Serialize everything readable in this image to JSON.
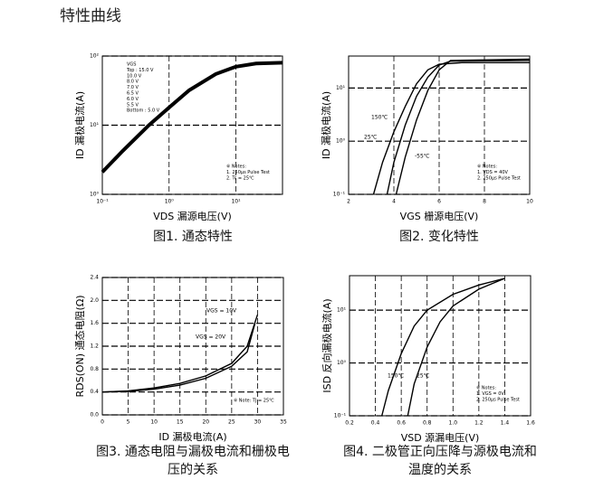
{
  "page": {
    "title": "特性曲线"
  },
  "chart_data": [
    {
      "type": "line",
      "caption": "图1. 通态特性",
      "x_label": "VDS 漏源电压(V)",
      "y_label": "ID 漏极电流(A)",
      "xlog": true,
      "ylog": true,
      "xlim": [
        0.1,
        50
      ],
      "ylim": [
        1,
        100
      ],
      "xticks": [
        {
          "value": 0.1,
          "label": "10⁻¹"
        },
        {
          "value": 1,
          "label": "10⁰"
        },
        {
          "value": 10,
          "label": "10¹"
        }
      ],
      "yticks": [
        {
          "value": 1,
          "label": "10⁰"
        },
        {
          "value": 10,
          "label": "10¹"
        },
        {
          "value": 100,
          "label": "10²"
        }
      ],
      "grid": true,
      "series": [
        {
          "color": "#000",
          "x": [
            0.1,
            0.2,
            0.5,
            1,
            2,
            5,
            10,
            20,
            50
          ],
          "values": [
            2.1,
            4.2,
            10,
            18,
            32,
            55,
            70,
            78,
            80
          ]
        }
      ],
      "annotations": [
        [
          "VGS",
          "Top :  15.0 V",
          "10.0 V",
          "8.0 V",
          "7.0 V",
          "6.5 V",
          "6.0 V",
          "5.5 V",
          "Bottom :  5.0 V"
        ],
        [
          "※ Notes:",
          "1. 250μs Pulse Test",
          "2. Tc = 25℃"
        ]
      ]
    },
    {
      "type": "line",
      "caption": "图2. 变化特性",
      "x_label": "VGS 栅源电压(V)",
      "y_label": "ID 漏极电流(A)",
      "ylog": true,
      "xlim": [
        2,
        10
      ],
      "ylim": [
        0.1,
        40
      ],
      "xticks": [
        2,
        4,
        6,
        8,
        10
      ],
      "yticks": [
        {
          "value": 0.1,
          "label": "10⁻¹"
        },
        {
          "value": 1,
          "label": "10⁰"
        },
        {
          "value": 10,
          "label": "10¹"
        }
      ],
      "grid": true,
      "series": [
        {
          "name": "150℃",
          "color": "#000",
          "x": [
            3.1,
            3.5,
            4,
            4.5,
            5,
            5.5,
            6,
            7,
            10
          ],
          "values": [
            0.1,
            0.4,
            1.5,
            4.5,
            12,
            22,
            28,
            30,
            30
          ]
        },
        {
          "name": "25℃",
          "color": "#000",
          "x": [
            3.7,
            4,
            4.5,
            5,
            5.5,
            6,
            6.5,
            10
          ],
          "values": [
            0.1,
            0.4,
            2,
            7,
            16,
            27,
            32,
            33
          ]
        },
        {
          "name": "-55℃",
          "color": "#000",
          "x": [
            4.1,
            4.5,
            5,
            5.5,
            6,
            6.5,
            10
          ],
          "values": [
            0.1,
            0.5,
            2.5,
            9,
            22,
            33,
            35
          ]
        }
      ],
      "annotations": [
        [
          "※ Notes:",
          "1. VDS = 40V",
          "2. 250μs Pulse Test"
        ]
      ]
    },
    {
      "type": "line",
      "caption": "图3. 通态电阻与漏极电流和栅极电压的关系",
      "x_label": "ID 漏极电流(A)",
      "y_label": "RDS(ON) 通态电阻(Ω)",
      "xlim": [
        0,
        35
      ],
      "ylim": [
        0,
        2.4
      ],
      "xticks": [
        0,
        5,
        10,
        15,
        20,
        25,
        30,
        35
      ],
      "yticks": [
        {
          "value": 0,
          "label": "0.0"
        },
        0.4,
        0.8,
        1.2,
        1.6,
        {
          "value": 2,
          "label": "2.0"
        },
        2.4
      ],
      "grid": true,
      "series": [
        {
          "name": "VGS = 10V",
          "color": "#000",
          "x": [
            0,
            5,
            10,
            15,
            20,
            25,
            28,
            30
          ],
          "values": [
            0.4,
            0.42,
            0.47,
            0.55,
            0.68,
            0.9,
            1.2,
            1.75
          ]
        },
        {
          "name": "VGS = 20V",
          "color": "#000",
          "x": [
            0,
            5,
            10,
            15,
            20,
            25,
            28,
            29.5
          ],
          "values": [
            0.4,
            0.41,
            0.45,
            0.52,
            0.64,
            0.85,
            1.1,
            1.6
          ]
        }
      ],
      "annotations": [
        [
          "※ Note: TJ = 25℃"
        ]
      ]
    },
    {
      "type": "line",
      "caption": "图4. 二极管正向压降与源极电流和温度的关系",
      "x_label": "VSD 源漏电压(V)",
      "y_label": "ISD 反向漏极电流(A)",
      "ylog": true,
      "xlim": [
        0.2,
        1.6
      ],
      "ylim": [
        0.1,
        45
      ],
      "xticks": [
        0.2,
        0.4,
        0.6,
        0.8,
        {
          "value": 1,
          "label": "1.0"
        },
        1.2,
        1.4,
        1.6
      ],
      "yticks": [
        {
          "value": 0.1,
          "label": "10⁻¹"
        },
        {
          "value": 1,
          "label": "10⁰"
        },
        {
          "value": 10,
          "label": "10¹"
        }
      ],
      "grid": true,
      "series": [
        {
          "name": "150℃",
          "color": "#000",
          "x": [
            0.45,
            0.5,
            0.6,
            0.7,
            0.8,
            1,
            1.2,
            1.4
          ],
          "values": [
            0.1,
            0.3,
            1.5,
            5,
            10,
            20,
            30,
            40
          ]
        },
        {
          "name": "25℃",
          "color": "#000",
          "x": [
            0.65,
            0.7,
            0.8,
            0.9,
            1,
            1.2,
            1.4
          ],
          "values": [
            0.1,
            0.4,
            2,
            6,
            12,
            25,
            40
          ]
        }
      ],
      "annotations": [
        [
          "※ Notes:",
          "1. VGS = 0V",
          "2. 250μs Pulse Test"
        ]
      ]
    }
  ]
}
